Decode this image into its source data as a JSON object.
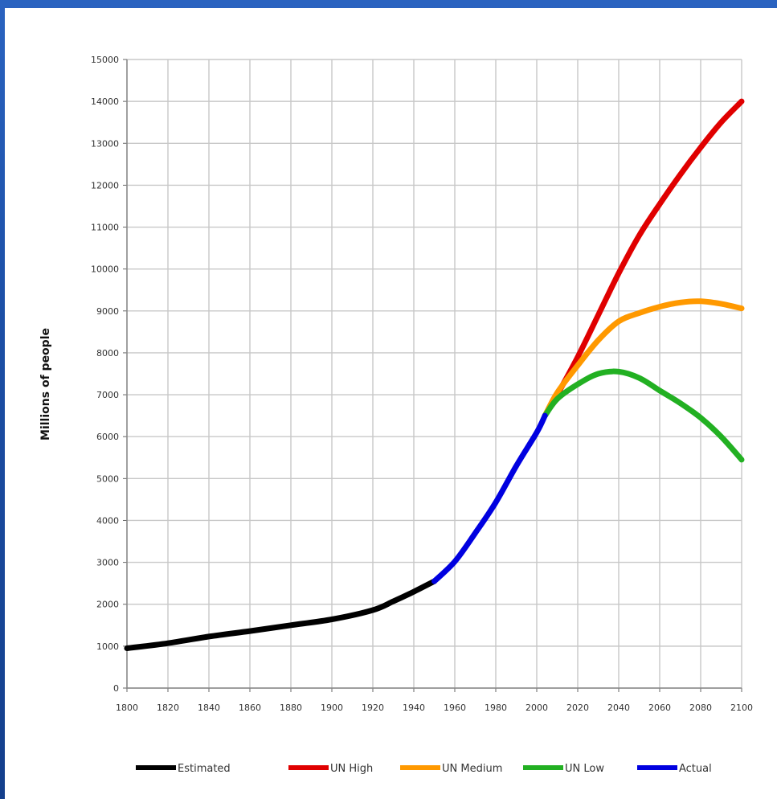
{
  "chart_data": {
    "type": "line",
    "title": "",
    "xlabel": "",
    "ylabel": "Millions of people",
    "xlim": [
      1800,
      2100
    ],
    "ylim": [
      0,
      15000
    ],
    "x_ticks": [
      "1800",
      "1820",
      "1840",
      "1860",
      "1880",
      "1900",
      "1920",
      "1940",
      "1960",
      "1980",
      "2000",
      "2020",
      "2040",
      "2060",
      "2080",
      "2100"
    ],
    "y_ticks": [
      "0",
      "1000",
      "2000",
      "3000",
      "4000",
      "5000",
      "6000",
      "7000",
      "8000",
      "9000",
      "10000",
      "11000",
      "12000",
      "13000",
      "14000",
      "15000"
    ],
    "grid": true,
    "legend_position": "bottom",
    "series": [
      {
        "name": "Estimated",
        "color": "#000000",
        "points": [
          [
            1800,
            950
          ],
          [
            1820,
            1070
          ],
          [
            1840,
            1230
          ],
          [
            1860,
            1360
          ],
          [
            1880,
            1500
          ],
          [
            1900,
            1640
          ],
          [
            1920,
            1860
          ],
          [
            1930,
            2070
          ],
          [
            1940,
            2300
          ],
          [
            1950,
            2550
          ]
        ]
      },
      {
        "name": "UN High",
        "color": "#e00000",
        "points": [
          [
            2004,
            6500
          ],
          [
            2010,
            7000
          ],
          [
            2020,
            7900
          ],
          [
            2030,
            8900
          ],
          [
            2040,
            9900
          ],
          [
            2050,
            10800
          ],
          [
            2060,
            11550
          ],
          [
            2070,
            12250
          ],
          [
            2080,
            12900
          ],
          [
            2090,
            13500
          ],
          [
            2100,
            14000
          ]
        ]
      },
      {
        "name": "UN Medium",
        "color": "#ff9900",
        "points": [
          [
            2004,
            6500
          ],
          [
            2010,
            7050
          ],
          [
            2020,
            7700
          ],
          [
            2030,
            8300
          ],
          [
            2040,
            8750
          ],
          [
            2050,
            8950
          ],
          [
            2060,
            9100
          ],
          [
            2070,
            9200
          ],
          [
            2080,
            9230
          ],
          [
            2090,
            9170
          ],
          [
            2100,
            9060
          ]
        ]
      },
      {
        "name": "UN Low",
        "color": "#22b022",
        "points": [
          [
            2004,
            6500
          ],
          [
            2010,
            6900
          ],
          [
            2020,
            7250
          ],
          [
            2030,
            7500
          ],
          [
            2040,
            7550
          ],
          [
            2050,
            7400
          ],
          [
            2060,
            7100
          ],
          [
            2070,
            6800
          ],
          [
            2080,
            6450
          ],
          [
            2090,
            6000
          ],
          [
            2100,
            5450
          ]
        ]
      },
      {
        "name": "Actual",
        "color": "#0000e0",
        "points": [
          [
            1950,
            2550
          ],
          [
            1960,
            3020
          ],
          [
            1970,
            3700
          ],
          [
            1980,
            4430
          ],
          [
            1990,
            5300
          ],
          [
            2000,
            6100
          ],
          [
            2004,
            6500
          ]
        ]
      }
    ]
  }
}
